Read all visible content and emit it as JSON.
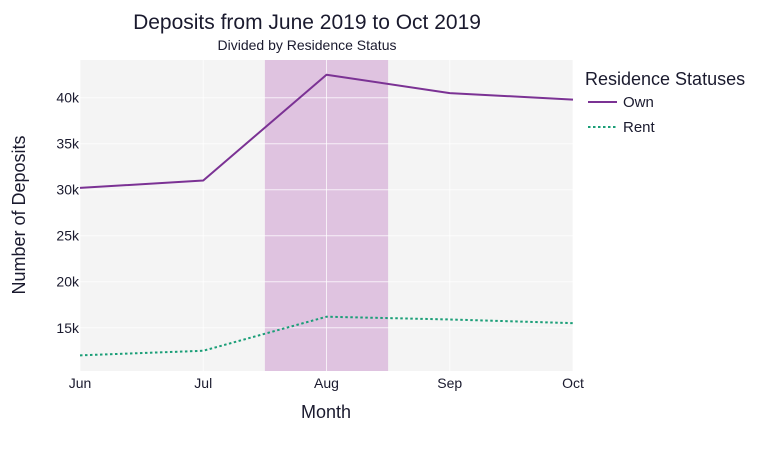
{
  "chart_data": {
    "type": "line",
    "title": "Deposits from June 2019 to Oct 2019",
    "subtitle": "Divided by Residence Status",
    "xlabel": "Month",
    "ylabel": "Number of Deposits",
    "categories": [
      "Jun",
      "Jul",
      "Aug",
      "Sep",
      "Oct"
    ],
    "y_ticks": [
      15000,
      20000,
      25000,
      30000,
      35000,
      40000
    ],
    "y_tick_labels": [
      "15k",
      "20k",
      "25k",
      "30k",
      "35k",
      "40k"
    ],
    "ylim": [
      10300,
      44100
    ],
    "grid": true,
    "legend_title": "Residence Statuses",
    "legend_position": "top-right",
    "highlight_range": [
      "Jul",
      "Sep"
    ],
    "highlight_fraction": [
      0.5,
      0.5
    ],
    "highlight_color": "#dfc3e0",
    "background_color": "#f4f4f4",
    "series": [
      {
        "name": "Own",
        "values": [
          30200,
          31000,
          42500,
          40500,
          39800
        ],
        "color": "#7b3294",
        "dash": "solid"
      },
      {
        "name": "Rent",
        "values": [
          12000,
          12500,
          16200,
          15900,
          15500
        ],
        "color": "#1a9e77",
        "dash": "dotted"
      }
    ]
  }
}
